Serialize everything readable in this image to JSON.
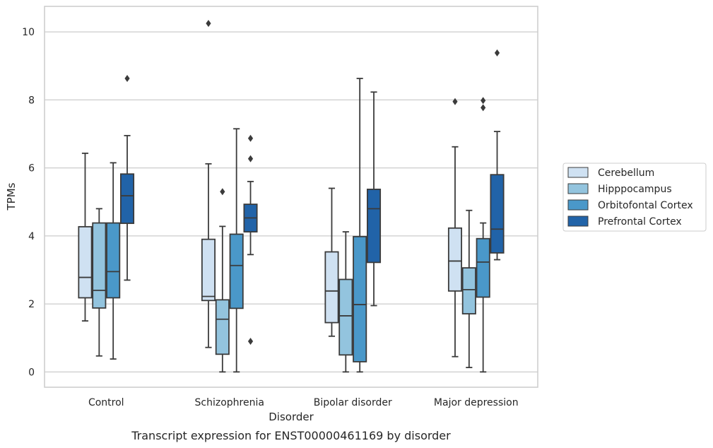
{
  "chart_data": {
    "type": "boxplot",
    "title": "",
    "caption": "Transcript expression for ENST00000461169 by disorder",
    "xlabel": "Disorder",
    "ylabel": "TPMs",
    "ylim": [
      -0.45,
      10.75
    ],
    "yticks": [
      0,
      2,
      4,
      6,
      8,
      10
    ],
    "grid": "horizontal",
    "legend_position": "right",
    "categories": [
      "Control",
      "Schizophrenia",
      "Bipolar disorder",
      "Major depression"
    ],
    "series": [
      {
        "name": "Cerebellum",
        "color": "#cfe1f2",
        "boxes": [
          {
            "whislo": 1.5,
            "q1": 2.18,
            "med": 2.78,
            "q3": 4.27,
            "whishi": 6.43,
            "fliers": []
          },
          {
            "whislo": 0.72,
            "q1": 2.1,
            "med": 2.22,
            "q3": 3.9,
            "whishi": 6.12,
            "fliers": [
              10.25
            ]
          },
          {
            "whislo": 1.05,
            "q1": 1.45,
            "med": 2.38,
            "q3": 3.53,
            "whishi": 5.4,
            "fliers": []
          },
          {
            "whislo": 0.45,
            "q1": 2.38,
            "med": 3.26,
            "q3": 4.23,
            "whishi": 6.62,
            "fliers": [
              7.95
            ]
          }
        ]
      },
      {
        "name": "Hipppocampus",
        "color": "#93c4de",
        "boxes": [
          {
            "whislo": 0.47,
            "q1": 1.88,
            "med": 2.4,
            "q3": 4.38,
            "whishi": 4.8,
            "fliers": []
          },
          {
            "whislo": 0.0,
            "q1": 0.52,
            "med": 1.55,
            "q3": 2.12,
            "whishi": 4.28,
            "fliers": [
              5.3
            ]
          },
          {
            "whislo": 0.0,
            "q1": 0.5,
            "med": 1.65,
            "q3": 2.72,
            "whishi": 4.12,
            "fliers": []
          },
          {
            "whislo": 0.13,
            "q1": 1.71,
            "med": 2.42,
            "q3": 3.06,
            "whishi": 4.75,
            "fliers": []
          }
        ]
      },
      {
        "name": "Orbitofontal Cortex",
        "color": "#4a98c9",
        "boxes": [
          {
            "whislo": 0.38,
            "q1": 2.18,
            "med": 2.95,
            "q3": 4.38,
            "whishi": 6.15,
            "fliers": []
          },
          {
            "whislo": 0.0,
            "q1": 1.87,
            "med": 3.13,
            "q3": 4.05,
            "whishi": 7.15,
            "fliers": []
          },
          {
            "whislo": 0.0,
            "q1": 0.3,
            "med": 1.98,
            "q3": 3.98,
            "whishi": 8.63,
            "fliers": []
          },
          {
            "whislo": 0.0,
            "q1": 2.2,
            "med": 3.23,
            "q3": 3.92,
            "whishi": 4.38,
            "fliers": [
              7.77,
              7.98
            ]
          }
        ]
      },
      {
        "name": "Prefrontal Cortex",
        "color": "#2163a8",
        "boxes": [
          {
            "whislo": 2.7,
            "q1": 4.37,
            "med": 5.18,
            "q3": 5.82,
            "whishi": 6.95,
            "fliers": [
              8.63
            ]
          },
          {
            "whislo": 3.45,
            "q1": 4.12,
            "med": 4.53,
            "q3": 4.93,
            "whishi": 5.6,
            "fliers": [
              0.9,
              6.27,
              6.87
            ]
          },
          {
            "whislo": 1.95,
            "q1": 3.22,
            "med": 4.8,
            "q3": 5.37,
            "whishi": 8.23,
            "fliers": []
          },
          {
            "whislo": 3.3,
            "q1": 3.5,
            "med": 4.2,
            "q3": 5.8,
            "whishi": 7.07,
            "fliers": [
              9.38
            ]
          }
        ]
      }
    ]
  }
}
